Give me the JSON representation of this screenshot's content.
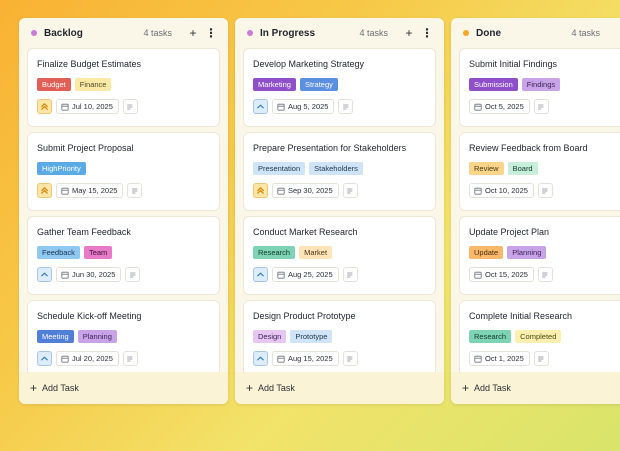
{
  "colors": {
    "backlog_dot": "#c979d8",
    "inprogress_dot": "#c979d8",
    "done_dot": "#f5a524"
  },
  "columns": [
    {
      "title": "Backlog",
      "count": "4 tasks",
      "dot_color": "#c979d8",
      "add_label": "Add Task",
      "cards": [
        {
          "title": "Finalize Budget Estimates",
          "tags": [
            {
              "label": "Budget",
              "bg": "#e25f57",
              "fg": "#ffffff"
            },
            {
              "label": "Finance",
              "bg": "#fbe9a6",
              "fg": "#4a4a2a"
            }
          ],
          "priority": "double-chevron-up-icon",
          "priority_bg": "#fde6a6",
          "priority_fg": "#d48a10",
          "date": "Jul 10, 2025"
        },
        {
          "title": "Submit Project Proposal",
          "tags": [
            {
              "label": "HighPriority",
              "bg": "#5aaae6",
              "fg": "#ffffff"
            }
          ],
          "priority": "double-chevron-up-icon",
          "priority_bg": "#fde6a6",
          "priority_fg": "#d48a10",
          "date": "May 15, 2025"
        },
        {
          "title": "Gather Team Feedback",
          "tags": [
            {
              "label": "Feedback",
              "bg": "#8fc8f0",
              "fg": "#1b3550"
            },
            {
              "label": "Team",
              "bg": "#e97ac9",
              "fg": "#3a1030"
            }
          ],
          "priority": "chevron-up-icon",
          "priority_bg": "#dcecfa",
          "priority_fg": "#3c7fc0",
          "date": "Jun 30, 2025"
        },
        {
          "title": "Schedule Kick-off Meeting",
          "tags": [
            {
              "label": "Meeting",
              "bg": "#4f7fd6",
              "fg": "#ffffff"
            },
            {
              "label": "Planning",
              "bg": "#c9a3e8",
              "fg": "#3a1f55"
            }
          ],
          "priority": "chevron-up-icon",
          "priority_bg": "#dcecfa",
          "priority_fg": "#3c7fc0",
          "date": "Jul 20, 2025"
        }
      ]
    },
    {
      "title": "In Progress",
      "count": "4 tasks",
      "dot_color": "#c979d8",
      "add_label": "Add Task",
      "cards": [
        {
          "title": "Develop Marketing Strategy",
          "tags": [
            {
              "label": "Marketing",
              "bg": "#8e4fc8",
              "fg": "#ffffff"
            },
            {
              "label": "Strategy",
              "bg": "#5b8fe0",
              "fg": "#ffffff"
            }
          ],
          "priority": "chevron-up-icon",
          "priority_bg": "#dcecfa",
          "priority_fg": "#3c7fc0",
          "date": "Aug 5, 2025"
        },
        {
          "title": "Prepare Presentation for Stakeholders",
          "tags": [
            {
              "label": "Presentation",
              "bg": "#cfe4f6",
              "fg": "#1b3550"
            },
            {
              "label": "Stakeholders",
              "bg": "#cfe4f6",
              "fg": "#1b3550"
            }
          ],
          "priority": "double-chevron-up-icon",
          "priority_bg": "#fde6a6",
          "priority_fg": "#d48a10",
          "date": "Sep 30, 2025"
        },
        {
          "title": "Conduct Market Research",
          "tags": [
            {
              "label": "Research",
              "bg": "#7ed3b4",
              "fg": "#10382a"
            },
            {
              "label": "Market",
              "bg": "#fde3b8",
              "fg": "#4a3410"
            }
          ],
          "priority": "chevron-up-icon",
          "priority_bg": "#dcecfa",
          "priority_fg": "#3c7fc0",
          "date": "Aug 25, 2025"
        },
        {
          "title": "Design Product Prototype",
          "tags": [
            {
              "label": "Design",
              "bg": "#e6c6f2",
              "fg": "#3a1f55"
            },
            {
              "label": "Prototype",
              "bg": "#cfe4f6",
              "fg": "#1b3550"
            }
          ],
          "priority": "chevron-up-icon",
          "priority_bg": "#dcecfa",
          "priority_fg": "#3c7fc0",
          "date": "Aug 15, 2025"
        }
      ]
    },
    {
      "title": "Done",
      "count": "4 tasks",
      "dot_color": "#f5a524",
      "add_label": "Add Task",
      "cards": [
        {
          "title": "Submit Initial Findings",
          "tags": [
            {
              "label": "Submission",
              "bg": "#8e4fc8",
              "fg": "#ffffff"
            },
            {
              "label": "Findings",
              "bg": "#c9a3e8",
              "fg": "#3a1f55"
            }
          ],
          "priority": "",
          "date": "Oct 5, 2025"
        },
        {
          "title": "Review Feedback from Board",
          "tags": [
            {
              "label": "Review",
              "bg": "#fcd58a",
              "fg": "#4a3410"
            },
            {
              "label": "Board",
              "bg": "#c6eed8",
              "fg": "#10382a"
            }
          ],
          "priority": "",
          "date": "Oct 10, 2025"
        },
        {
          "title": "Update Project Plan",
          "tags": [
            {
              "label": "Update",
              "bg": "#f9b86a",
              "fg": "#4a2a10"
            },
            {
              "label": "Planning",
              "bg": "#c9a3e8",
              "fg": "#3a1f55"
            }
          ],
          "priority": "",
          "date": "Oct 15, 2025"
        },
        {
          "title": "Complete Initial Research",
          "tags": [
            {
              "label": "Research",
              "bg": "#7ed3b4",
              "fg": "#10382a"
            },
            {
              "label": "Completed",
              "bg": "#fbf0b0",
              "fg": "#4a4a10"
            }
          ],
          "priority": "",
          "date": "Oct 1, 2025"
        }
      ]
    }
  ]
}
